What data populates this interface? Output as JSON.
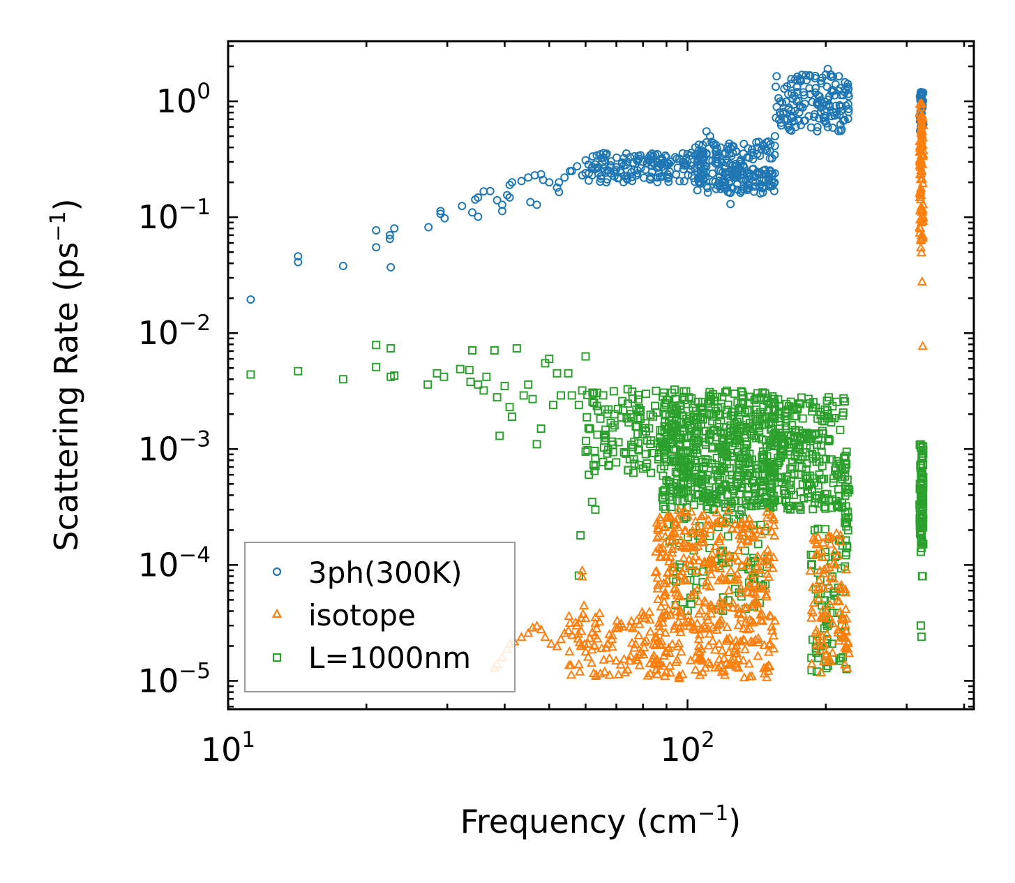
{
  "chart_data": {
    "type": "scatter",
    "xscale": "log",
    "yscale": "log",
    "xlim": [
      10,
      420
    ],
    "ylim": [
      5.7e-06,
      3.3
    ],
    "xlabel": {
      "main": "Frequency (cm",
      "sup": "−1",
      "close": ")"
    },
    "ylabel": {
      "main": "Scattering Rate (ps",
      "sup": "−1",
      "close": ")"
    },
    "x_ticks": [
      {
        "value": 10,
        "base": "10",
        "exp": "1"
      },
      {
        "value": 100,
        "base": "10",
        "exp": "2"
      }
    ],
    "y_ticks": [
      {
        "value": 1,
        "base": "10",
        "exp": "0"
      },
      {
        "value": 0.1,
        "base": "10",
        "exp": "−1"
      },
      {
        "value": 0.01,
        "base": "10",
        "exp": "−2"
      },
      {
        "value": 0.001,
        "base": "10",
        "exp": "−3"
      },
      {
        "value": 0.0001,
        "base": "10",
        "exp": "−4"
      },
      {
        "value": 1e-05,
        "base": "10",
        "exp": "−5"
      }
    ],
    "legend_position": "lower-left",
    "series": [
      {
        "name": "3ph(300K)",
        "marker": "circle",
        "color": "#1f77b4",
        "points": [
          [
            11.2,
            0.0195
          ],
          [
            14.2,
            0.046
          ],
          [
            14.2,
            0.041
          ],
          [
            17.8,
            0.038
          ],
          [
            21,
            0.077
          ],
          [
            21,
            0.055
          ],
          [
            22.5,
            0.065
          ],
          [
            22.5,
            0.07
          ],
          [
            23,
            0.08
          ],
          [
            22.6,
            0.037
          ],
          [
            27.3,
            0.082
          ],
          [
            29,
            0.113
          ],
          [
            29,
            0.107
          ],
          [
            29.6,
            0.098
          ],
          [
            32.3,
            0.125
          ],
          [
            34.5,
            0.142
          ],
          [
            34,
            0.11
          ],
          [
            35,
            0.101
          ],
          [
            35,
            0.148
          ],
          [
            36,
            0.167
          ],
          [
            37.2,
            0.168
          ],
          [
            38.5,
            0.14
          ],
          [
            39.5,
            0.128
          ],
          [
            40.5,
            0.155
          ],
          [
            39.5,
            0.113
          ],
          [
            41,
            0.148
          ],
          [
            41,
            0.19
          ],
          [
            41.5,
            0.2
          ],
          [
            43.5,
            0.205
          ],
          [
            45,
            0.22
          ],
          [
            46.5,
            0.23
          ],
          [
            48,
            0.235
          ],
          [
            48.5,
            0.21
          ],
          [
            45.5,
            0.135
          ],
          [
            47,
            0.128
          ],
          [
            50,
            0.2
          ],
          [
            52.5,
            0.2
          ],
          [
            52.5,
            0.165
          ],
          [
            52,
            0.18
          ],
          [
            54,
            0.22
          ],
          [
            55.5,
            0.25
          ],
          [
            56,
            0.25
          ],
          [
            57.5,
            0.275
          ],
          [
            59,
            0.23
          ],
          [
            59,
            0.23
          ],
          [
            60,
            0.24
          ],
          [
            60,
            0.31
          ],
          [
            61,
            0.24
          ],
          [
            62,
            0.23
          ],
          [
            63,
            0.26
          ],
          [
            64,
            0.27
          ],
          [
            66,
            0.25
          ],
          [
            68,
            0.28
          ],
          [
            70,
            0.27
          ],
          [
            72,
            0.29
          ],
          [
            74,
            0.3
          ],
          [
            76,
            0.29
          ],
          [
            78,
            0.31
          ],
          [
            80,
            0.3
          ],
          [
            82,
            0.32
          ],
          [
            84,
            0.3
          ],
          [
            86,
            0.35
          ],
          [
            88,
            0.32
          ],
          [
            90,
            0.28
          ],
          [
            92,
            0.3
          ],
          [
            94,
            0.33
          ],
          [
            96,
            0.32
          ],
          [
            98,
            0.3
          ],
          [
            100,
            0.35
          ],
          [
            102,
            0.36
          ],
          [
            104,
            0.4
          ],
          [
            106,
            0.38
          ],
          [
            108,
            0.42
          ],
          [
            110,
            0.55
          ],
          [
            112,
            0.5
          ],
          [
            114,
            0.42
          ],
          [
            116,
            0.3
          ],
          [
            118,
            0.25
          ],
          [
            120,
            0.2
          ],
          [
            122,
            0.18
          ],
          [
            124,
            0.13
          ],
          [
            126,
            0.22
          ],
          [
            128,
            0.26
          ],
          [
            130,
            0.3
          ],
          [
            132,
            0.28
          ],
          [
            135,
            0.33
          ],
          [
            138,
            0.36
          ],
          [
            142,
            0.4
          ],
          [
            146,
            0.42
          ],
          [
            150,
            0.45
          ],
          [
            155,
            0.5
          ],
          [
            160,
            0.62
          ],
          [
            165,
            0.7
          ],
          [
            170,
            0.75
          ],
          [
            175,
            0.8
          ],
          [
            180,
            0.95
          ],
          [
            185,
            1.15
          ],
          [
            190,
            1.3
          ],
          [
            195,
            1.5
          ],
          [
            200,
            1.7
          ],
          [
            202,
            1.9
          ],
          [
            205,
            1.7
          ],
          [
            210,
            1.4
          ],
          [
            215,
            1.3
          ],
          [
            220,
            1.2
          ],
          [
            195,
            0.8
          ],
          [
            322,
            1.2
          ],
          [
            323,
            1.1
          ],
          [
            324,
            1.0
          ],
          [
            322,
            0.9
          ],
          [
            323,
            0.85
          ],
          [
            321,
            0.7
          ],
          [
            322,
            0.6
          ]
        ],
        "clouds": [
          {
            "x_range": [
              60,
              110
            ],
            "y_range": [
              0.2,
              0.36
            ],
            "count": 140
          },
          {
            "x_range": [
              105,
              155
            ],
            "y_range": [
              0.16,
              0.45
            ],
            "count": 200
          },
          {
            "x_range": [
              155,
              225
            ],
            "y_range": [
              0.55,
              1.7
            ],
            "count": 140
          },
          {
            "x_range": [
              320,
              326
            ],
            "y_range": [
              0.55,
              1.2
            ],
            "count": 30
          }
        ]
      },
      {
        "name": "isotope",
        "marker": "triangle",
        "color": "#ff7f0e",
        "points": [
          [
            38,
            1.3e-05
          ],
          [
            38.5,
            1.4e-05
          ],
          [
            39.5,
            1.6e-05
          ],
          [
            40.5,
            1.9e-05
          ],
          [
            41,
            2.1e-05
          ],
          [
            42,
            2.2e-05
          ],
          [
            43.5,
            2.4e-05
          ],
          [
            45,
            2.6e-05
          ],
          [
            46,
            2.9e-05
          ],
          [
            47,
            3e-05
          ],
          [
            48,
            2.8e-05
          ],
          [
            49,
            2.4e-05
          ],
          [
            50.5,
            2.1e-05
          ],
          [
            52,
            2e-05
          ],
          [
            53,
            2.3e-05
          ],
          [
            54,
            2.6e-05
          ],
          [
            58,
            1.4e-05
          ],
          [
            59,
            8e-05
          ],
          [
            59,
            9e-05
          ],
          [
            59.5,
            4.5e-05
          ],
          [
            60,
            3.5e-05
          ],
          [
            324,
            0.028
          ],
          [
            325,
            0.0078
          ],
          [
            323,
            0.05
          ],
          [
            322,
            0.055
          ],
          [
            323,
            0.07
          ]
        ],
        "clouds": [
          {
            "x_range": [
              55,
              90
            ],
            "y_range": [
              1.1e-05,
              4e-05
            ],
            "count": 120
          },
          {
            "x_range": [
              85,
              155
            ],
            "y_range": [
              1.05e-05,
              0.0003
            ],
            "count": 420
          },
          {
            "x_range": [
              185,
              222
            ],
            "y_range": [
              1.05e-05,
              0.0002
            ],
            "count": 90
          },
          {
            "x_range": [
              220,
              225
            ],
            "y_range": [
              1.2e-05,
              3.5e-05
            ],
            "count": 12
          },
          {
            "x_range": [
              320,
              326
            ],
            "y_range": [
              0.06,
              1.0
            ],
            "count": 90
          }
        ]
      },
      {
        "name": "L=1000nm",
        "marker": "square",
        "color": "#2ca02c",
        "points": [
          [
            11.2,
            0.0044
          ],
          [
            14.2,
            0.0047
          ],
          [
            17.8,
            0.004
          ],
          [
            21,
            0.0079
          ],
          [
            21,
            0.0051
          ],
          [
            22.6,
            0.0074
          ],
          [
            22.6,
            0.0042
          ],
          [
            23,
            0.0043
          ],
          [
            27.2,
            0.0036
          ],
          [
            28.5,
            0.0045
          ],
          [
            29.5,
            0.0042
          ],
          [
            32,
            0.0049
          ],
          [
            33.5,
            0.0048
          ],
          [
            33.7,
            0.0038
          ],
          [
            34,
            0.0071
          ],
          [
            35,
            0.0036
          ],
          [
            36,
            0.0032
          ],
          [
            36.5,
            0.0042
          ],
          [
            38,
            0.0071
          ],
          [
            38.5,
            0.0028
          ],
          [
            39,
            0.0013
          ],
          [
            40,
            0.0035
          ],
          [
            41,
            0.0023
          ],
          [
            41.5,
            0.0019
          ],
          [
            42.5,
            0.0074
          ],
          [
            44,
            0.0029
          ],
          [
            45,
            0.0036
          ],
          [
            46,
            0.0027
          ],
          [
            47,
            0.0011
          ],
          [
            48,
            0.0015
          ],
          [
            49,
            0.0055
          ],
          [
            50,
            0.006
          ],
          [
            51,
            0.0024
          ],
          [
            52,
            0.0045
          ],
          [
            53,
            0.0029
          ],
          [
            55,
            0.0045
          ],
          [
            56,
            0.0029
          ],
          [
            58,
            0.0024
          ],
          [
            59,
            0.0032
          ],
          [
            60,
            0.0063
          ],
          [
            60,
            0.00095
          ],
          [
            61,
            0.0006
          ],
          [
            62,
            0.00035
          ],
          [
            63,
            0.0003
          ],
          [
            58.5,
            0.00018
          ],
          [
            58,
            8.1e-05
          ],
          [
            322,
            3e-05
          ],
          [
            323,
            2.4e-05
          ],
          [
            324,
            8e-05
          ],
          [
            325,
            8e-05
          ],
          [
            322,
            0.00013
          ],
          [
            323,
            0.00014
          ]
        ],
        "clouds": [
          {
            "x_range": [
              60,
              95
            ],
            "y_range": [
              0.0006,
              0.0033
            ],
            "count": 140
          },
          {
            "x_range": [
              88,
              155
            ],
            "y_range": [
              0.0003,
              0.0032
            ],
            "count": 550
          },
          {
            "x_range": [
              150,
              220
            ],
            "y_range": [
              0.0003,
              0.0028
            ],
            "count": 260
          },
          {
            "x_range": [
              90,
              150
            ],
            "y_range": [
              4e-05,
              0.0003
            ],
            "count": 90
          },
          {
            "x_range": [
              185,
              222
            ],
            "y_range": [
              1.2e-05,
              0.0003
            ],
            "count": 70
          },
          {
            "x_range": [
              220,
              225
            ],
            "y_range": [
              0.00012,
              0.0012
            ],
            "count": 25
          },
          {
            "x_range": [
              320,
              326
            ],
            "y_range": [
              0.00015,
              0.0011
            ],
            "count": 90
          }
        ]
      }
    ]
  }
}
